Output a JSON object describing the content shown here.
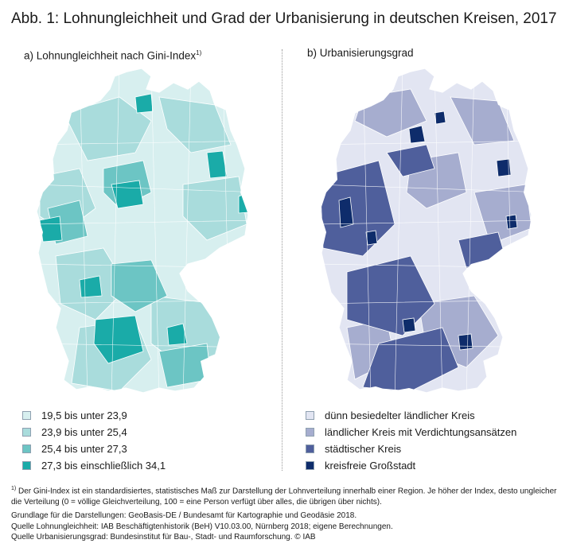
{
  "title": "Abb. 1: Lohnungleichheit und Grad der Urbanisierung in deutschen Kreisen, 2017",
  "panel_a": {
    "title": "a) Lohnungleichheit nach Gini-Index",
    "title_sup": "1)",
    "legend": [
      {
        "label": "19,5 bis unter 23,9",
        "color": "#d7efef"
      },
      {
        "label": "23,9 bis unter 25,4",
        "color": "#a9dcdc"
      },
      {
        "label": "25,4 bis unter 27,3",
        "color": "#6cc5c4"
      },
      {
        "label": "27,3 bis einschließlich 34,1",
        "color": "#1aaba8"
      }
    ]
  },
  "panel_b": {
    "title": "b) Urbanisierungsgrad",
    "legend": [
      {
        "label": "dünn besiedelter ländlicher Kreis",
        "color": "#e2e5f2"
      },
      {
        "label": "ländlicher Kreis mit Verdichtungsansätzen",
        "color": "#a6adcf"
      },
      {
        "label": "städtischer Kreis",
        "color": "#4f5f9c"
      },
      {
        "label": "kreisfreie Großstadt",
        "color": "#0e2c6b"
      }
    ]
  },
  "notes": {
    "footnote_marker": "1)",
    "footnote": "Der Gini-Index ist ein standardisiertes, statistisches Maß zur Darstellung der Lohnverteilung innerhalb einer Region. Je höher der Index, desto ungleicher die Verteilung (0 = völlige Gleichverteilung, 100 = eine Person verfügt über alles, die übrigen über nichts).",
    "basis": "Grundlage für die Darstellungen: GeoBasis-DE / Bundesamt für Kartographie und Geodäsie 2018.",
    "source_wage": "Quelle Lohnungleichheit: IAB Beschäftigtenhistorik (BeH) V10.03.00, Nürnberg 2018; eigene Berechnungen.",
    "source_urban": "Quelle Urbanisierungsgrad: Bundesinstitut für Bau-, Stadt- und Raumforschung. © IAB"
  }
}
